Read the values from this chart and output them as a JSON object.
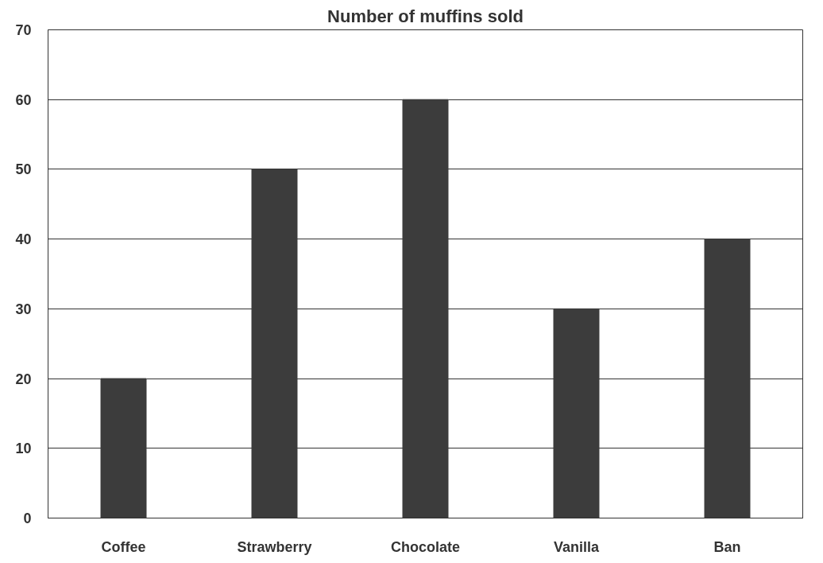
{
  "chart_data": {
    "type": "bar",
    "title": "Number of muffins sold",
    "categories": [
      "Coffee",
      "Strawberry",
      "Chocolate",
      "Vanilla",
      "Ban"
    ],
    "values": [
      20,
      50,
      60,
      30,
      40
    ],
    "color": "#3c3c3c",
    "ylim": [
      0,
      70
    ],
    "yticks": [
      0,
      10,
      20,
      30,
      40,
      50,
      60,
      70
    ],
    "grid": "y"
  }
}
